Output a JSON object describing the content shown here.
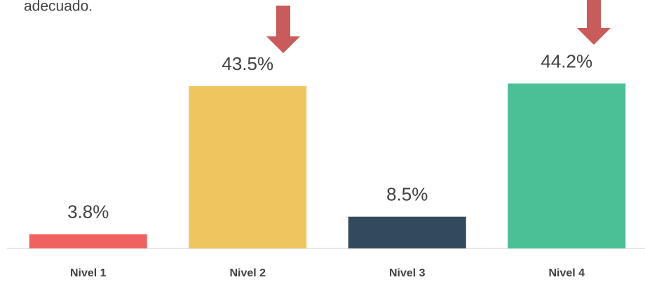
{
  "chart_data": {
    "type": "bar",
    "subtitle": "adecuado.",
    "categories": [
      "Nivel 1",
      "Nivel 2",
      "Nivel 3",
      "Nivel 4"
    ],
    "values": [
      3.8,
      43.5,
      8.5,
      44.2
    ],
    "value_labels": [
      "3.8%",
      "43.5%",
      "8.5%",
      "44.2%"
    ],
    "colors": [
      "#f0625f",
      "#efc55f",
      "#334a5c",
      "#4bbf95"
    ],
    "ylim": [
      0,
      66.6
    ]
  }
}
